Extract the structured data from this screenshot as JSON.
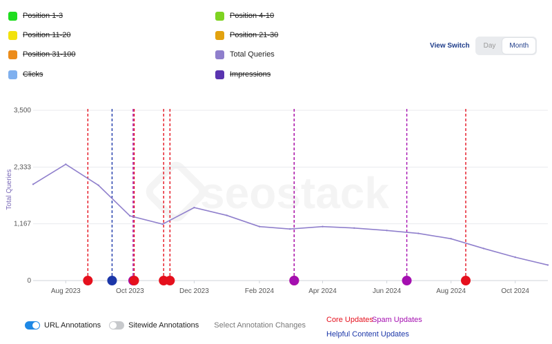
{
  "legend": [
    {
      "label": "Position 1-3",
      "color": "#1fdd1f",
      "enabled": false
    },
    {
      "label": "Position 4-10",
      "color": "#7ed321",
      "enabled": false
    },
    {
      "label": "Position 11-20",
      "color": "#f2e20c",
      "enabled": false
    },
    {
      "label": "Position 21-30",
      "color": "#e2a20f",
      "enabled": false
    },
    {
      "label": "Position 31-100",
      "color": "#ec8c1a",
      "enabled": false
    },
    {
      "label": "Total Queries",
      "color": "#8f7fcc",
      "enabled": true
    },
    {
      "label": "Clicks",
      "color": "#7fb0ef",
      "enabled": false
    },
    {
      "label": "Impressions",
      "color": "#5a34b0",
      "enabled": false
    }
  ],
  "view_switch": {
    "label": "View Switch",
    "options": [
      "Day",
      "Month"
    ],
    "selected": "Month"
  },
  "bottom": {
    "url_annotations": "URL Annotations",
    "sitewide_annotations": "Sitewide Annotations",
    "select_changes": "Select Annotation Changes"
  },
  "annotation_key": {
    "core": {
      "label": "Core Updates",
      "color": "#e5101d"
    },
    "spam": {
      "label": "Spam Updates",
      "color": "#a40fb0"
    },
    "helpful": {
      "label": "Helpful Content Updates",
      "color": "#1b36a8"
    }
  },
  "watermark": "seostack",
  "chart_data": {
    "type": "line",
    "ylabel": "Total Queries",
    "ylim": [
      0,
      3500
    ],
    "yticks": [
      "0",
      "1,167",
      "2,333",
      "3,500"
    ],
    "xticks": [
      "Aug 2023",
      "Oct 2023",
      "Dec 2023",
      "Feb 2024",
      "Apr 2024",
      "Jun 2024",
      "Aug 2024",
      "Oct 2024"
    ],
    "series": [
      {
        "name": "Total Queries",
        "color": "#8f7fcc",
        "points": [
          [
            "2023-07-01",
            1980
          ],
          [
            "2023-08-01",
            2390
          ],
          [
            "2023-09-01",
            1960
          ],
          [
            "2023-10-01",
            1330
          ],
          [
            "2023-11-01",
            1160
          ],
          [
            "2023-12-01",
            1500
          ],
          [
            "2024-01-01",
            1340
          ],
          [
            "2024-02-01",
            1110
          ],
          [
            "2024-03-01",
            1060
          ],
          [
            "2024-04-01",
            1110
          ],
          [
            "2024-05-01",
            1080
          ],
          [
            "2024-06-01",
            1030
          ],
          [
            "2024-07-01",
            970
          ],
          [
            "2024-08-01",
            860
          ],
          [
            "2024-09-01",
            660
          ],
          [
            "2024-10-01",
            480
          ],
          [
            "2024-11-01",
            320
          ]
        ]
      }
    ],
    "annotations": [
      {
        "date": "2023-08-22",
        "type": "core"
      },
      {
        "date": "2023-09-14",
        "type": "helpful"
      },
      {
        "date": "2023-10-04",
        "type": "spam"
      },
      {
        "date": "2023-10-05",
        "type": "core"
      },
      {
        "date": "2023-11-02",
        "type": "core"
      },
      {
        "date": "2023-11-08",
        "type": "core"
      },
      {
        "date": "2024-03-05",
        "type": "core"
      },
      {
        "date": "2024-03-05",
        "type": "spam"
      },
      {
        "date": "2024-06-20",
        "type": "spam"
      },
      {
        "date": "2024-08-15",
        "type": "core"
      }
    ]
  }
}
